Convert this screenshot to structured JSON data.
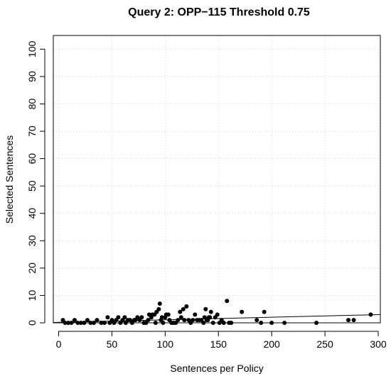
{
  "chart_data": {
    "type": "scatter",
    "title": "Query 2: OPP−115 Threshold 0.75",
    "xlabel": "Sentences per Policy",
    "ylabel": "Selected Sentences",
    "xlim": [
      -5,
      302
    ],
    "ylim": [
      0,
      105
    ],
    "xticks": [
      0,
      50,
      100,
      150,
      200,
      250,
      300
    ],
    "yticks": [
      0,
      10,
      20,
      30,
      40,
      50,
      60,
      70,
      80,
      90,
      100
    ],
    "grid": true,
    "trend_line": {
      "x": [
        -5,
        302
      ],
      "y": [
        0.12,
        3.0
      ]
    },
    "points": [
      [
        4,
        1
      ],
      [
        6,
        0
      ],
      [
        9,
        0
      ],
      [
        12,
        0
      ],
      [
        15,
        1
      ],
      [
        18,
        0
      ],
      [
        21,
        0
      ],
      [
        24,
        0
      ],
      [
        27,
        1
      ],
      [
        30,
        0
      ],
      [
        33,
        0
      ],
      [
        36,
        1
      ],
      [
        40,
        0
      ],
      [
        43,
        0
      ],
      [
        46,
        2
      ],
      [
        48,
        0
      ],
      [
        50,
        1
      ],
      [
        52,
        0
      ],
      [
        54,
        1
      ],
      [
        56,
        2
      ],
      [
        58,
        0
      ],
      [
        60,
        1
      ],
      [
        62,
        2
      ],
      [
        63,
        0
      ],
      [
        65,
        1
      ],
      [
        67,
        1
      ],
      [
        69,
        0
      ],
      [
        71,
        1
      ],
      [
        72,
        1
      ],
      [
        74,
        2
      ],
      [
        76,
        1
      ],
      [
        78,
        2
      ],
      [
        80,
        0
      ],
      [
        82,
        0
      ],
      [
        84,
        1
      ],
      [
        85,
        3
      ],
      [
        87,
        2
      ],
      [
        88,
        3
      ],
      [
        90,
        3
      ],
      [
        91,
        0
      ],
      [
        92,
        4
      ],
      [
        94,
        5
      ],
      [
        95,
        7
      ],
      [
        96,
        1
      ],
      [
        97,
        2
      ],
      [
        98,
        0
      ],
      [
        100,
        2
      ],
      [
        101,
        3
      ],
      [
        103,
        3
      ],
      [
        104,
        1
      ],
      [
        106,
        0
      ],
      [
        108,
        0
      ],
      [
        110,
        0
      ],
      [
        112,
        1
      ],
      [
        114,
        4
      ],
      [
        115,
        2
      ],
      [
        117,
        5
      ],
      [
        118,
        1
      ],
      [
        120,
        6
      ],
      [
        122,
        1
      ],
      [
        124,
        0
      ],
      [
        126,
        1
      ],
      [
        128,
        3
      ],
      [
        130,
        1
      ],
      [
        132,
        1
      ],
      [
        134,
        1
      ],
      [
        136,
        0
      ],
      [
        137,
        2
      ],
      [
        138,
        5
      ],
      [
        139,
        1
      ],
      [
        140,
        1
      ],
      [
        141,
        2
      ],
      [
        142,
        2
      ],
      [
        143,
        4
      ],
      [
        145,
        0
      ],
      [
        147,
        2
      ],
      [
        149,
        3
      ],
      [
        151,
        0
      ],
      [
        153,
        1
      ],
      [
        155,
        0
      ],
      [
        158,
        8
      ],
      [
        160,
        0
      ],
      [
        162,
        0
      ],
      [
        172,
        4
      ],
      [
        186,
        1
      ],
      [
        190,
        0
      ],
      [
        193,
        4
      ],
      [
        200,
        0
      ],
      [
        212,
        0
      ],
      [
        242,
        0
      ],
      [
        272,
        1
      ],
      [
        277,
        1
      ],
      [
        293,
        3
      ]
    ]
  }
}
